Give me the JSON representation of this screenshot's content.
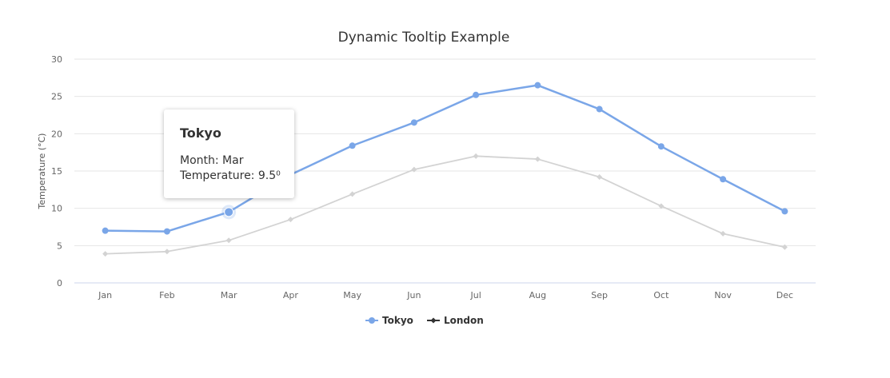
{
  "chart_data": {
    "type": "line",
    "title": "Dynamic Tooltip Example",
    "ylabel": "Temperature (°C)",
    "xlabel": "",
    "categories": [
      "Jan",
      "Feb",
      "Mar",
      "Apr",
      "May",
      "Jun",
      "Jul",
      "Aug",
      "Sep",
      "Oct",
      "Nov",
      "Dec"
    ],
    "ylim": [
      0,
      30
    ],
    "yticks": [
      0,
      5,
      10,
      15,
      20,
      25,
      30
    ],
    "grid": true,
    "legend_position": "bottom-center",
    "series": [
      {
        "name": "Tokyo",
        "color": "#7aa6e8",
        "marker": "circle",
        "values": [
          7.0,
          6.9,
          9.5,
          14.5,
          18.4,
          21.5,
          25.2,
          26.5,
          23.3,
          18.3,
          13.9,
          9.6
        ]
      },
      {
        "name": "London",
        "color": "#d3d3d3",
        "marker": "diamond",
        "values": [
          3.9,
          4.2,
          5.7,
          8.5,
          11.9,
          15.2,
          17.0,
          16.6,
          14.2,
          10.3,
          6.6,
          4.8
        ]
      }
    ]
  },
  "legend": {
    "items": [
      {
        "name": "Tokyo",
        "color": "#7aa6e8",
        "marker": "circle"
      },
      {
        "name": "London",
        "color": "#333333",
        "marker": "diamond"
      }
    ]
  },
  "tooltip": {
    "title": "Tokyo",
    "line1": "Month: Mar",
    "line2": "Temperature: 9.5⁰",
    "highlighted_series": "Tokyo",
    "highlighted_category": "Mar"
  }
}
